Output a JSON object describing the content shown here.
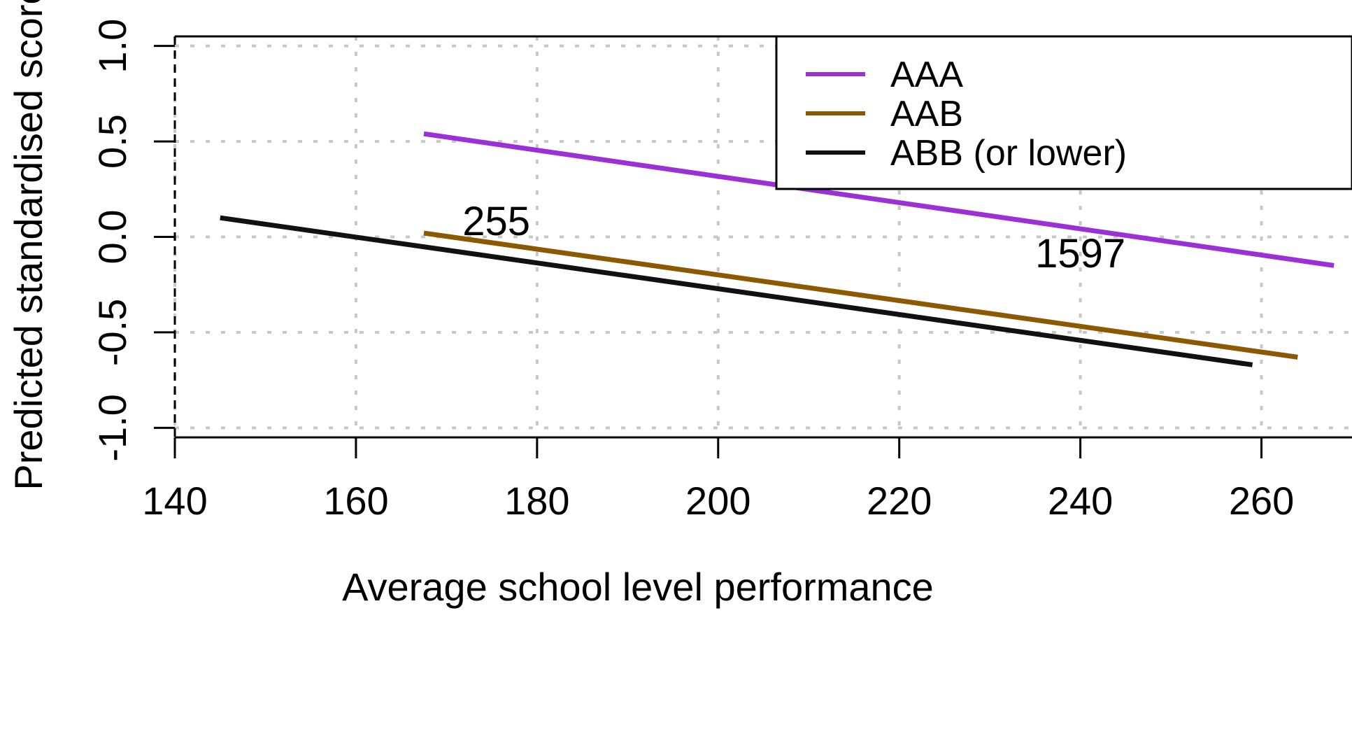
{
  "chart_data": {
    "type": "line",
    "title": "",
    "xlabel": "Average school level performance",
    "ylabel": "Predicted standardised score",
    "xlim": [
      140,
      270
    ],
    "ylim": [
      -1.05,
      1.05
    ],
    "x_ticks": [
      140,
      160,
      180,
      200,
      220,
      240,
      260
    ],
    "x_tick_labels": [
      "140",
      "160",
      "180",
      "200",
      "220",
      "240",
      "260"
    ],
    "y_ticks": [
      -1.0,
      -0.5,
      0.0,
      0.5,
      1.0
    ],
    "y_tick_labels": [
      "-1.0",
      "-0.5",
      "0.0",
      "0.5",
      "1.0"
    ],
    "grid": true,
    "legend_position": "top-right",
    "series": [
      {
        "name": "AAA",
        "color": "#9B30D9",
        "x": [
          167.5,
          268
        ],
        "y": [
          0.54,
          -0.15
        ]
      },
      {
        "name": "AAB",
        "color": "#8B5A00",
        "x": [
          167.5,
          264
        ],
        "y": [
          0.02,
          -0.63
        ]
      },
      {
        "name": "ABB (or lower)",
        "color": "#111111",
        "x": [
          145,
          259
        ],
        "y": [
          0.1,
          -0.67
        ]
      }
    ],
    "annotations": [
      {
        "text": "255",
        "x": 175.5,
        "y": 0.01
      },
      {
        "text": "1597",
        "x": 240,
        "y": -0.16
      }
    ]
  }
}
